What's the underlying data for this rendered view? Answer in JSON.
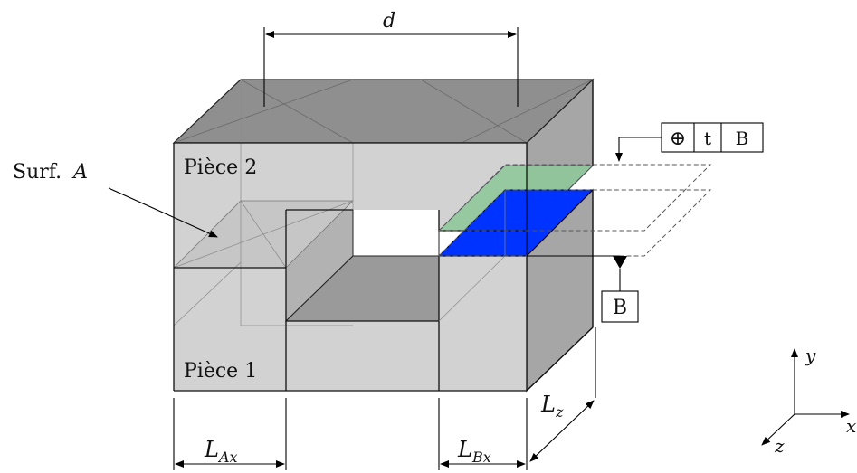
{
  "labels": {
    "dimension_d": "d",
    "surface_label_prefix": "Surf.",
    "surface_label_var": "A",
    "part_top": "Pièce 2",
    "part_bottom": "Pièce 1",
    "dim_LAx_main": "L",
    "dim_LAx_sub": "Ax",
    "dim_LBx_main": "L",
    "dim_LBx_sub": "Bx",
    "dim_Lz_main": "L",
    "dim_Lz_sub": "z"
  },
  "tolerance_frame": {
    "symbol": "⊕",
    "tolerance": "t",
    "datum": "B"
  },
  "datum_marker": {
    "label": "B"
  },
  "axes": {
    "x": "x",
    "y": "y",
    "z": "z"
  },
  "colors": {
    "green_surface": "#90c89a",
    "blue_surface": "#0033ff",
    "body_light": "#d0d0d0",
    "body_side": "#a8a8a8",
    "body_top": "#8e8e8e",
    "cavity_floor": "#9a9a9a",
    "cavity_wall": "#b4b4b4"
  }
}
